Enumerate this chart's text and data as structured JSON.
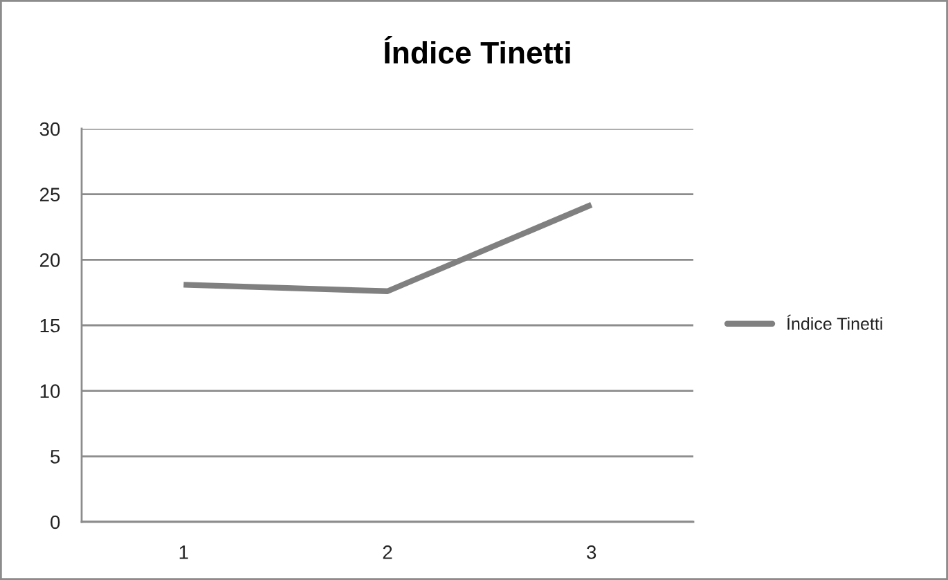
{
  "chart_data": {
    "type": "line",
    "title": "Índice Tinetti",
    "categories": [
      "1",
      "2",
      "3"
    ],
    "series": [
      {
        "name": "Índice Tinetti",
        "color": "#808080",
        "values": [
          18.1,
          17.6,
          24.2
        ]
      }
    ],
    "ylim": [
      0,
      30
    ],
    "yticks": [
      0,
      5,
      10,
      15,
      20,
      25,
      30
    ],
    "grid": "y",
    "legend": "right",
    "marker": "none",
    "line_style": "solid"
  }
}
